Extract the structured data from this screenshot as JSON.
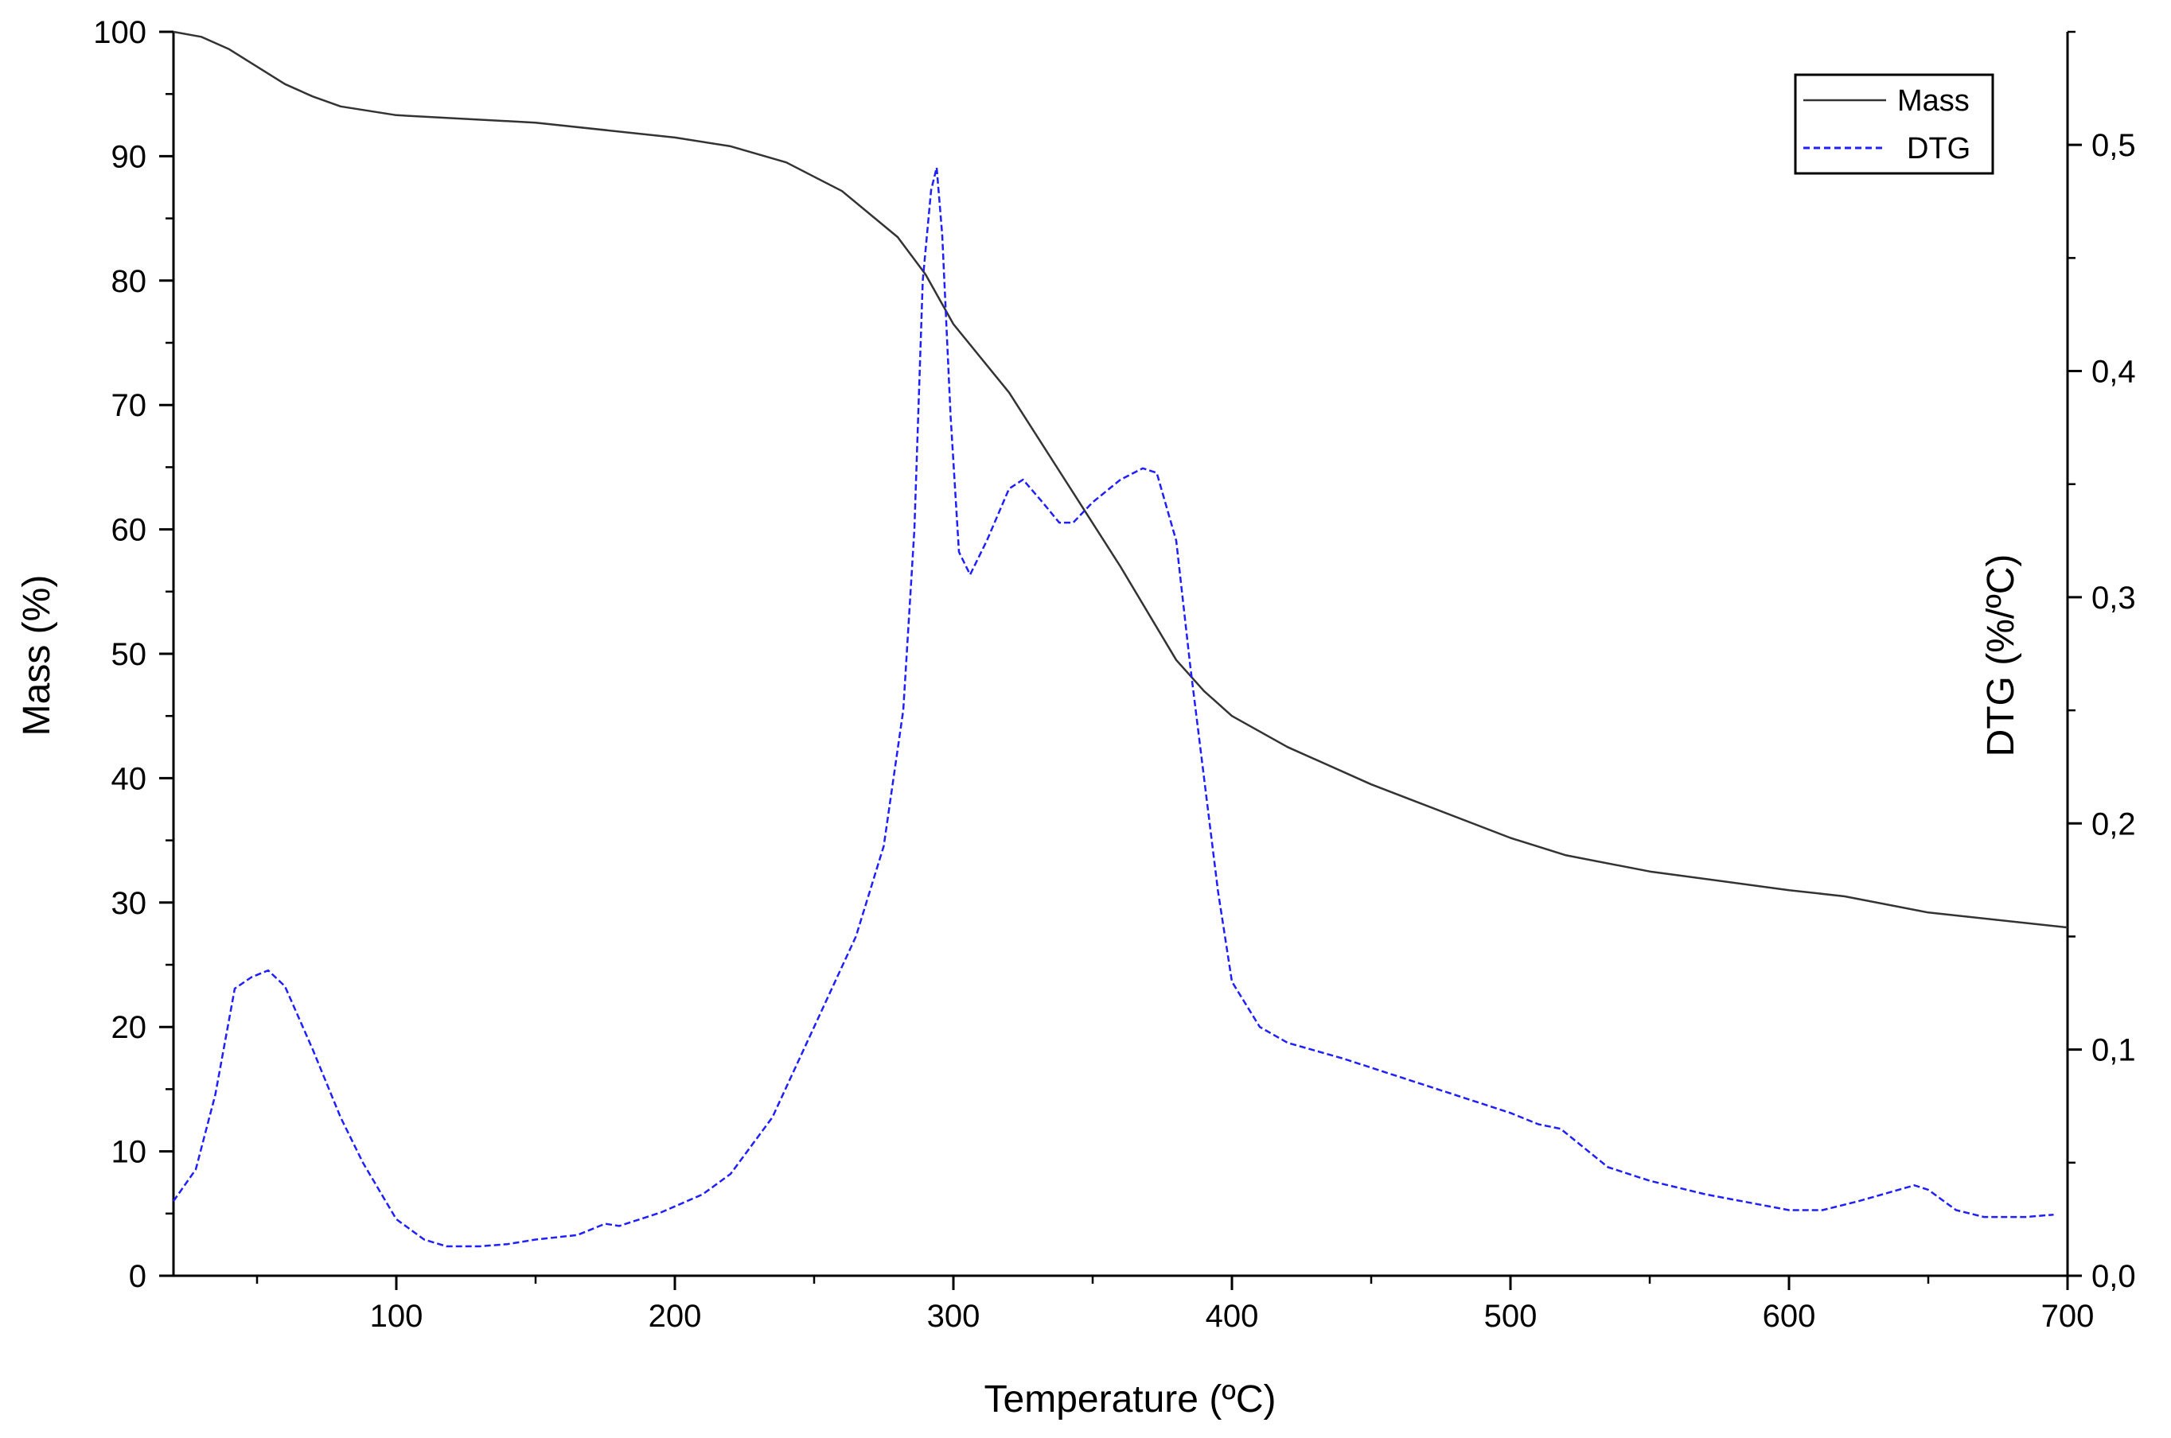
{
  "chart_data": {
    "type": "line",
    "xlabel": "Temperature (ºC)",
    "ylabel_left": "Mass (%)",
    "ylabel_right": "DTG (%/ºC)",
    "xlim": [
      20,
      700
    ],
    "ylim_left": [
      0,
      100
    ],
    "ylim_right": [
      0,
      0.55
    ],
    "x_ticks": [
      100,
      200,
      300,
      400,
      500,
      600,
      700
    ],
    "x_tick_labels": [
      "100",
      "200",
      "300",
      "400",
      "500",
      "600",
      "700"
    ],
    "y_left_ticks": [
      0,
      10,
      20,
      30,
      40,
      50,
      60,
      70,
      80,
      90,
      100
    ],
    "y_left_tick_labels": [
      "0",
      "10",
      "20",
      "30",
      "40",
      "50",
      "60",
      "70",
      "80",
      "90",
      "100"
    ],
    "y_right_ticks": [
      0,
      0.1,
      0.2,
      0.3,
      0.4,
      0.5
    ],
    "y_right_tick_labels": [
      "0,0",
      "0,1",
      "0,2",
      "0,3",
      "0,4",
      "0,5"
    ],
    "grid": false,
    "legend_position": "top-right",
    "series": [
      {
        "name": "Mass",
        "axis": "left",
        "color": "#333333",
        "style": "solid",
        "points": [
          [
            20,
            100
          ],
          [
            30,
            99.6
          ],
          [
            40,
            98.6
          ],
          [
            50,
            97.2
          ],
          [
            60,
            95.8
          ],
          [
            70,
            94.8
          ],
          [
            80,
            94
          ],
          [
            100,
            93.3
          ],
          [
            150,
            92.7
          ],
          [
            200,
            91.5
          ],
          [
            220,
            90.8
          ],
          [
            240,
            89.5
          ],
          [
            260,
            87.2
          ],
          [
            280,
            83.5
          ],
          [
            290,
            80.5
          ],
          [
            300,
            76.5
          ],
          [
            320,
            71
          ],
          [
            340,
            64
          ],
          [
            360,
            57
          ],
          [
            380,
            49.5
          ],
          [
            390,
            47
          ],
          [
            400,
            45
          ],
          [
            420,
            42.5
          ],
          [
            450,
            39.5
          ],
          [
            500,
            35.2
          ],
          [
            520,
            33.8
          ],
          [
            550,
            32.5
          ],
          [
            600,
            31
          ],
          [
            620,
            30.5
          ],
          [
            650,
            29.2
          ],
          [
            700,
            28
          ]
        ]
      },
      {
        "name": "DTG",
        "axis": "right",
        "color": "#1f1fff",
        "style": "dashed",
        "points": [
          [
            20,
            0.033
          ],
          [
            28,
            0.047
          ],
          [
            35,
            0.08
          ],
          [
            42,
            0.127
          ],
          [
            48,
            0.132
          ],
          [
            54,
            0.135
          ],
          [
            60,
            0.128
          ],
          [
            70,
            0.1
          ],
          [
            80,
            0.07
          ],
          [
            88,
            0.05
          ],
          [
            100,
            0.025
          ],
          [
            110,
            0.016
          ],
          [
            118,
            0.013
          ],
          [
            130,
            0.013
          ],
          [
            140,
            0.014
          ],
          [
            150,
            0.016
          ],
          [
            165,
            0.018
          ],
          [
            175,
            0.023
          ],
          [
            180,
            0.022
          ],
          [
            195,
            0.028
          ],
          [
            210,
            0.036
          ],
          [
            220,
            0.045
          ],
          [
            235,
            0.07
          ],
          [
            250,
            0.11
          ],
          [
            265,
            0.15
          ],
          [
            275,
            0.19
          ],
          [
            282,
            0.25
          ],
          [
            286,
            0.33
          ],
          [
            289,
            0.44
          ],
          [
            292,
            0.48
          ],
          [
            294,
            0.49
          ],
          [
            296,
            0.46
          ],
          [
            299,
            0.38
          ],
          [
            302,
            0.32
          ],
          [
            306,
            0.31
          ],
          [
            312,
            0.325
          ],
          [
            320,
            0.348
          ],
          [
            325,
            0.352
          ],
          [
            332,
            0.342
          ],
          [
            338,
            0.333
          ],
          [
            343,
            0.333
          ],
          [
            350,
            0.342
          ],
          [
            360,
            0.352
          ],
          [
            368,
            0.357
          ],
          [
            373,
            0.355
          ],
          [
            380,
            0.325
          ],
          [
            385,
            0.27
          ],
          [
            390,
            0.22
          ],
          [
            395,
            0.17
          ],
          [
            400,
            0.13
          ],
          [
            410,
            0.11
          ],
          [
            420,
            0.103
          ],
          [
            440,
            0.096
          ],
          [
            460,
            0.088
          ],
          [
            480,
            0.08
          ],
          [
            500,
            0.072
          ],
          [
            510,
            0.067
          ],
          [
            518,
            0.065
          ],
          [
            525,
            0.058
          ],
          [
            535,
            0.048
          ],
          [
            550,
            0.042
          ],
          [
            570,
            0.036
          ],
          [
            600,
            0.029
          ],
          [
            612,
            0.029
          ],
          [
            625,
            0.033
          ],
          [
            645,
            0.04
          ],
          [
            650,
            0.038
          ],
          [
            660,
            0.029
          ],
          [
            670,
            0.026
          ],
          [
            685,
            0.026
          ],
          [
            695,
            0.027
          ]
        ]
      }
    ]
  },
  "legend": {
    "mass_label": "Mass",
    "dtg_label": "DTG"
  }
}
